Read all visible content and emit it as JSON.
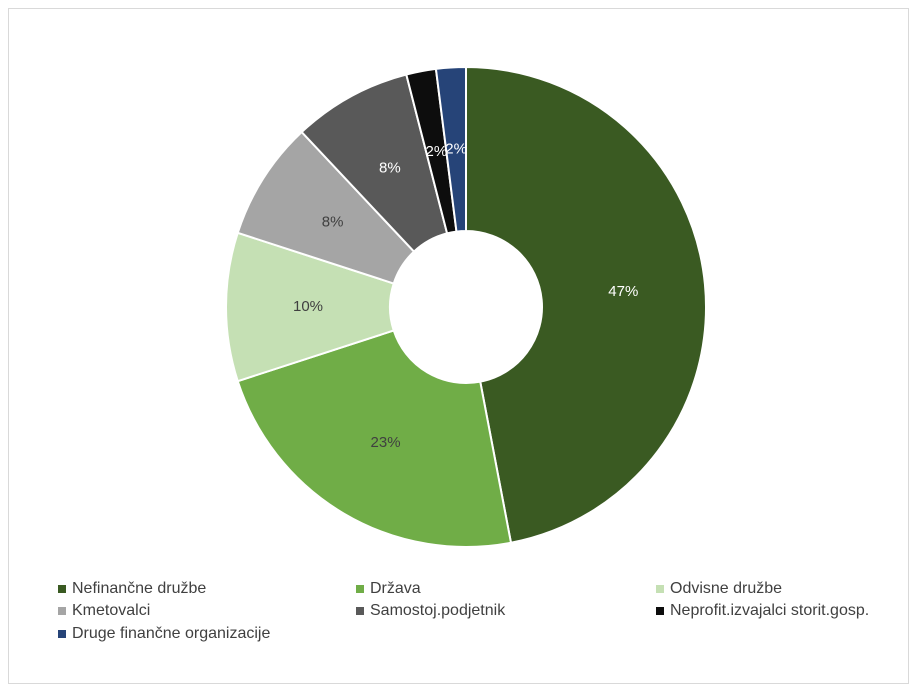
{
  "chart_data": {
    "type": "donut",
    "categories": [
      "Nefinančne družbe",
      "Država",
      "Odvisne družbe",
      "Kmetovalci",
      "Samostoj.podjetnik",
      "Neprofit.izvajalci storit.gosp.",
      "Druge finančne organizacije"
    ],
    "values": [
      47,
      23,
      10,
      8,
      8,
      2,
      2
    ],
    "value_labels": [
      "47%",
      "23%",
      "10%",
      "8%",
      "8%",
      "2%",
      "2%"
    ],
    "colors": [
      "#3a5a22",
      "#70ad47",
      "#c5e0b4",
      "#a5a5a5",
      "#595959",
      "#0d0d0d",
      "#264478"
    ],
    "legend": "bottom"
  }
}
